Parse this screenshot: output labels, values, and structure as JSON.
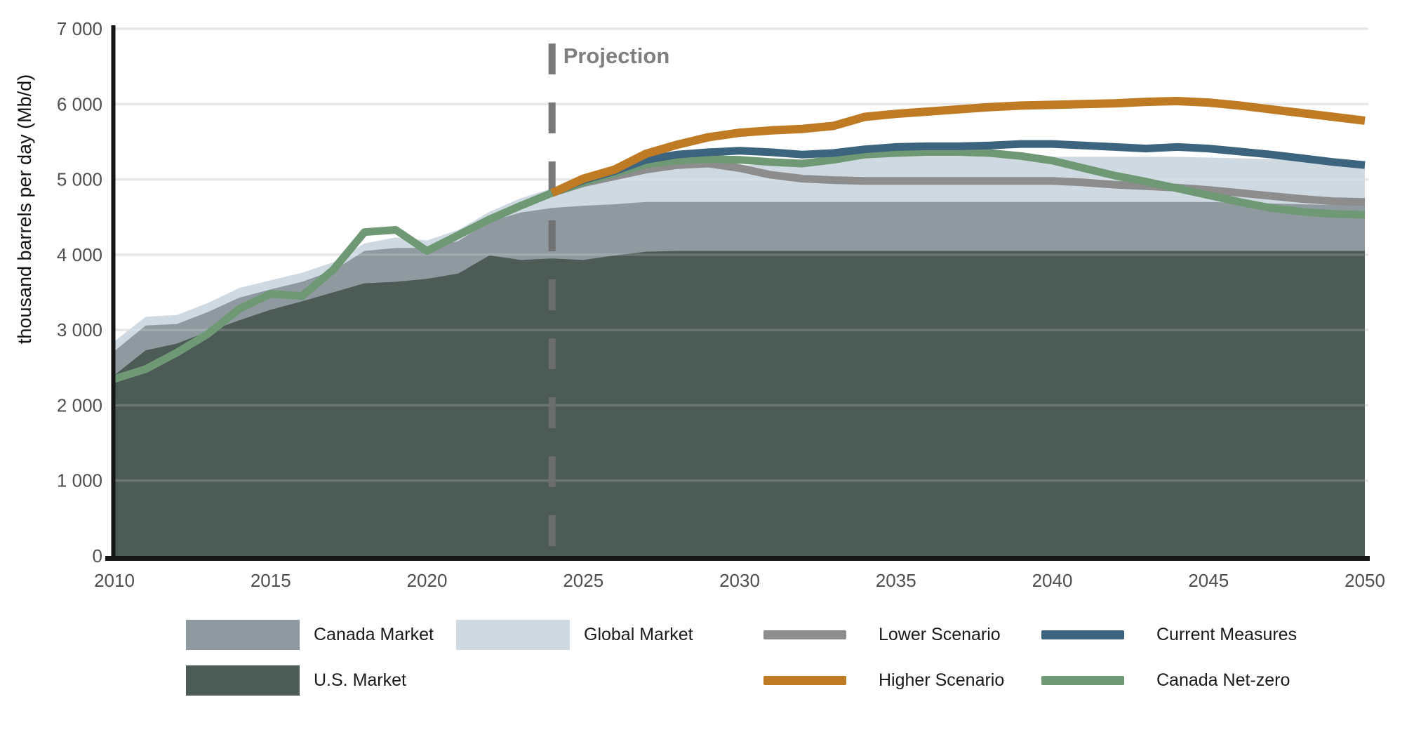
{
  "chart_data": {
    "type": "area+line",
    "title": "",
    "ylabel": "thousand barrels per day (Mb/d)",
    "xlabel": "",
    "xlim": [
      2010,
      2050
    ],
    "ylim": [
      0,
      7000
    ],
    "grid": "horizontal",
    "legend_position": "bottom",
    "annotation": {
      "label": "Projection",
      "x": 2024,
      "style": "dashed-vertical-line"
    },
    "x_ticks": [
      {
        "v": 2010,
        "label": "2010"
      },
      {
        "v": 2015,
        "label": "2015"
      },
      {
        "v": 2020,
        "label": "2020"
      },
      {
        "v": 2025,
        "label": "2025"
      },
      {
        "v": 2030,
        "label": "2030"
      },
      {
        "v": 2035,
        "label": "2035"
      },
      {
        "v": 2040,
        "label": "2040"
      },
      {
        "v": 2045,
        "label": "2045"
      },
      {
        "v": 2050,
        "label": "2050"
      }
    ],
    "y_ticks": [
      {
        "v": 0,
        "label": "0"
      },
      {
        "v": 1000,
        "label": "1 000"
      },
      {
        "v": 2000,
        "label": "2 000"
      },
      {
        "v": 3000,
        "label": "3 000"
      },
      {
        "v": 4000,
        "label": "4 000"
      },
      {
        "v": 5000,
        "label": "5 000"
      },
      {
        "v": 6000,
        "label": "6 000"
      },
      {
        "v": 7000,
        "label": "7 000"
      }
    ],
    "years": [
      2010,
      2011,
      2012,
      2013,
      2014,
      2015,
      2016,
      2017,
      2018,
      2019,
      2020,
      2021,
      2022,
      2023,
      2024,
      2025,
      2026,
      2027,
      2028,
      2029,
      2030,
      2031,
      2032,
      2033,
      2034,
      2035,
      2036,
      2037,
      2038,
      2039,
      2040,
      2041,
      2042,
      2043,
      2044,
      2045,
      2046,
      2047,
      2048,
      2049,
      2050
    ],
    "areas": [
      {
        "name": "Global Market",
        "color": "#cfd9e2",
        "stack_top": [
          2850,
          3175,
          3200,
          3360,
          3560,
          3660,
          3760,
          3900,
          4150,
          4230,
          4190,
          4330,
          4570,
          4750,
          4880,
          4910,
          5030,
          5110,
          5150,
          5160,
          5180,
          5210,
          5240,
          5270,
          5290,
          5300,
          5300,
          5300,
          5300,
          5300,
          5300,
          5300,
          5300,
          5300,
          5300,
          5290,
          5280,
          5270,
          5260,
          5250,
          5250
        ]
      },
      {
        "name": "Canada Market",
        "color": "#8e9aa0",
        "stack_top": [
          2720,
          3060,
          3080,
          3240,
          3430,
          3540,
          3640,
          3790,
          4050,
          4090,
          4090,
          4180,
          4440,
          4560,
          4620,
          4650,
          4670,
          4700,
          4700,
          4700,
          4700,
          4700,
          4700,
          4700,
          4700,
          4700,
          4700,
          4700,
          4700,
          4700,
          4700,
          4700,
          4700,
          4700,
          4700,
          4700,
          4690,
          4680,
          4670,
          4660,
          4660
        ]
      },
      {
        "name": "U.S. Market",
        "color": "#4c5b56",
        "stack_top": [
          2400,
          2730,
          2820,
          2980,
          3130,
          3270,
          3380,
          3500,
          3620,
          3640,
          3680,
          3750,
          3990,
          3930,
          3950,
          3930,
          3990,
          4040,
          4050,
          4050,
          4050,
          4050,
          4050,
          4050,
          4050,
          4050,
          4050,
          4050,
          4050,
          4050,
          4050,
          4050,
          4050,
          4050,
          4050,
          4050,
          4050,
          4050,
          4050,
          4050,
          4050
        ]
      }
    ],
    "lines": [
      {
        "name": "Lower Scenario",
        "color": "#8d8d8d",
        "width": 11,
        "values": [
          null,
          null,
          null,
          null,
          null,
          null,
          null,
          null,
          null,
          null,
          null,
          null,
          null,
          null,
          4820,
          4950,
          5040,
          5130,
          5190,
          5210,
          5150,
          5060,
          5010,
          4990,
          4980,
          4980,
          4980,
          4980,
          4980,
          4980,
          4980,
          4960,
          4930,
          4910,
          4890,
          4860,
          4820,
          4780,
          4740,
          4710,
          4700
        ]
      },
      {
        "name": "Canada Net-zero",
        "color": "#6f9874",
        "width": 11,
        "values": [
          2350,
          2480,
          2700,
          2950,
          3280,
          3480,
          3450,
          3800,
          4300,
          4330,
          4050,
          4260,
          4470,
          4650,
          4820,
          4960,
          5080,
          5200,
          5250,
          5270,
          5260,
          5230,
          5210,
          5260,
          5330,
          5350,
          5360,
          5360,
          5350,
          5310,
          5250,
          5150,
          5050,
          4970,
          4880,
          4790,
          4700,
          4620,
          4570,
          4540,
          4530
        ]
      },
      {
        "name": "Current Measures",
        "color": "#3d647e",
        "width": 11,
        "values": [
          null,
          null,
          null,
          null,
          null,
          null,
          null,
          null,
          null,
          null,
          null,
          null,
          null,
          null,
          4820,
          4990,
          5110,
          5260,
          5330,
          5360,
          5380,
          5360,
          5330,
          5350,
          5400,
          5430,
          5440,
          5440,
          5450,
          5470,
          5470,
          5450,
          5430,
          5410,
          5430,
          5410,
          5370,
          5330,
          5280,
          5230,
          5190
        ]
      },
      {
        "name": "Higher Scenario",
        "color": "#be7b23",
        "width": 12,
        "values": [
          null,
          null,
          null,
          null,
          null,
          null,
          null,
          null,
          null,
          null,
          null,
          null,
          null,
          null,
          4820,
          5010,
          5130,
          5340,
          5460,
          5560,
          5620,
          5650,
          5670,
          5710,
          5830,
          5870,
          5900,
          5930,
          5960,
          5980,
          5990,
          6000,
          6010,
          6030,
          6040,
          6020,
          5980,
          5930,
          5880,
          5830,
          5780
        ]
      }
    ],
    "legend": {
      "entries": [
        {
          "label": "Canada Market",
          "swatch": "area",
          "color": "#8e9aa0"
        },
        {
          "label": "Global Market",
          "swatch": "area",
          "color": "#cfd9e2"
        },
        {
          "label": "Lower Scenario",
          "swatch": "line",
          "color": "#8d8d8d"
        },
        {
          "label": "Current Measures",
          "swatch": "line",
          "color": "#3d647e"
        },
        {
          "label": "U.S. Market",
          "swatch": "area",
          "color": "#4c5b56"
        },
        {
          "label": "Higher Scenario",
          "swatch": "line",
          "color": "#be7b23"
        },
        {
          "label": "Canada Net-zero",
          "swatch": "line",
          "color": "#6f9874"
        }
      ]
    },
    "colors": {
      "grid": "#e4e4e4",
      "axis": "#161616",
      "tick_text": "#4f4f4f",
      "projection": "#7f7f7f",
      "projection_dash": "#6e6e6e"
    }
  }
}
